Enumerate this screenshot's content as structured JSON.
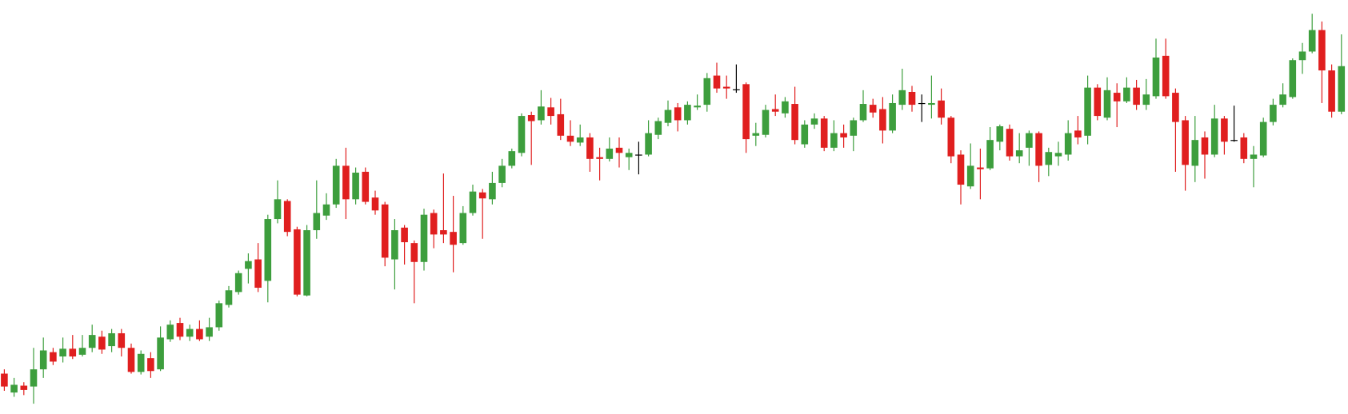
{
  "chart_data": {
    "type": "candlestick",
    "up_color": "#3d9e3d",
    "down_color": "#e01f1f",
    "flat_color": "#000000",
    "ylim": [
      36,
      518
    ],
    "open": [
      83,
      61,
      69,
      68,
      88,
      108,
      103,
      112,
      105,
      113,
      126,
      115,
      130,
      113,
      85,
      101,
      88,
      123,
      142,
      126,
      135,
      126,
      137,
      163,
      178,
      205,
      216,
      191,
      263,
      284,
      251,
      174,
      250,
      267,
      280,
      325,
      286,
      318,
      288,
      280,
      216,
      253,
      235,
      213,
      270,
      250,
      248,
      235,
      270,
      294,
      286,
      305,
      325,
      340,
      384,
      378,
      393,
      385,
      360,
      352,
      358,
      335,
      333,
      346,
      335,
      338,
      338,
      361,
      375,
      393,
      378,
      393,
      396,
      430,
      417,
      414,
      420,
      360,
      361,
      391,
      386,
      397,
      350,
      373,
      380,
      346,
      363,
      360,
      378,
      396,
      391,
      366,
      396,
      411,
      398,
      396,
      401,
      381,
      338,
      301,
      323,
      322,
      353,
      368,
      336,
      346,
      363,
      326,
      336,
      338,
      366,
      360,
      416,
      381,
      410,
      400,
      416,
      396,
      406,
      453,
      410,
      378,
      325,
      358,
      338,
      380,
      355,
      358,
      333,
      337,
      376,
      396,
      405,
      448,
      458,
      483,
      436,
      388
    ],
    "high": [
      88,
      78,
      73,
      113,
      125,
      113,
      125,
      128,
      128,
      140,
      133,
      135,
      135,
      118,
      110,
      108,
      138,
      145,
      148,
      140,
      145,
      148,
      168,
      185,
      203,
      223,
      235,
      268,
      308,
      286,
      254,
      256,
      308,
      293,
      333,
      346,
      323,
      323,
      296,
      283,
      263,
      256,
      238,
      275,
      274,
      316,
      290,
      278,
      303,
      298,
      318,
      333,
      345,
      386,
      388,
      413,
      404,
      403,
      378,
      373,
      363,
      346,
      358,
      358,
      345,
      353,
      378,
      381,
      401,
      398,
      400,
      408,
      433,
      445,
      430,
      443,
      422,
      375,
      396,
      408,
      405,
      417,
      378,
      386,
      383,
      378,
      373,
      381,
      413,
      403,
      405,
      408,
      438,
      418,
      408,
      430,
      415,
      383,
      343,
      351,
      345,
      370,
      373,
      373,
      363,
      366,
      365,
      346,
      353,
      378,
      383,
      430,
      420,
      428,
      421,
      428,
      425,
      426,
      473,
      473,
      415,
      383,
      383,
      365,
      396,
      383,
      395,
      363,
      348,
      381,
      403,
      421,
      450,
      468,
      502,
      493,
      443,
      478
    ],
    "low": [
      63,
      56,
      58,
      48,
      78,
      93,
      96,
      100,
      103,
      108,
      106,
      108,
      103,
      83,
      82,
      78,
      86,
      120,
      122,
      121,
      121,
      121,
      133,
      160,
      175,
      188,
      178,
      166,
      258,
      243,
      173,
      173,
      240,
      262,
      276,
      263,
      280,
      280,
      268,
      208,
      181,
      210,
      165,
      203,
      229,
      235,
      201,
      233,
      267,
      240,
      280,
      300,
      322,
      336,
      326,
      373,
      373,
      355,
      348,
      348,
      318,
      308,
      330,
      323,
      320,
      315,
      336,
      356,
      371,
      365,
      373,
      390,
      388,
      410,
      403,
      410,
      340,
      348,
      358,
      383,
      381,
      350,
      346,
      368,
      342,
      342,
      346,
      342,
      376,
      381,
      351,
      363,
      390,
      388,
      376,
      380,
      373,
      328,
      280,
      298,
      286,
      320,
      343,
      331,
      328,
      325,
      306,
      313,
      325,
      331,
      350,
      350,
      378,
      378,
      370,
      398,
      390,
      390,
      403,
      403,
      318,
      296,
      306,
      310,
      335,
      338,
      353,
      328,
      300,
      335,
      372,
      393,
      403,
      432,
      456,
      398,
      381,
      385
    ],
    "close": [
      68,
      70,
      64,
      88,
      110,
      97,
      112,
      103,
      113,
      128,
      111,
      130,
      113,
      85,
      106,
      86,
      125,
      140,
      126,
      135,
      123,
      137,
      165,
      180,
      200,
      214,
      183,
      263,
      286,
      248,
      175,
      250,
      270,
      280,
      325,
      286,
      317,
      283,
      273,
      218,
      250,
      236,
      213,
      268,
      245,
      245,
      233,
      270,
      295,
      287,
      305,
      325,
      342,
      383,
      377,
      394,
      383,
      360,
      353,
      358,
      333,
      333,
      345,
      340,
      340,
      338,
      363,
      377,
      390,
      378,
      396,
      395,
      427,
      415,
      415,
      414,
      356,
      363,
      390,
      388,
      400,
      355,
      373,
      380,
      346,
      363,
      358,
      378,
      397,
      387,
      366,
      398,
      413,
      396,
      398,
      398,
      381,
      336,
      303,
      325,
      321,
      355,
      371,
      336,
      343,
      363,
      325,
      341,
      340,
      363,
      358,
      416,
      383,
      413,
      400,
      416,
      396,
      408,
      451,
      406,
      376,
      326,
      355,
      338,
      380,
      353,
      355,
      333,
      338,
      376,
      396,
      408,
      448,
      458,
      483,
      436,
      388,
      441
    ]
  }
}
